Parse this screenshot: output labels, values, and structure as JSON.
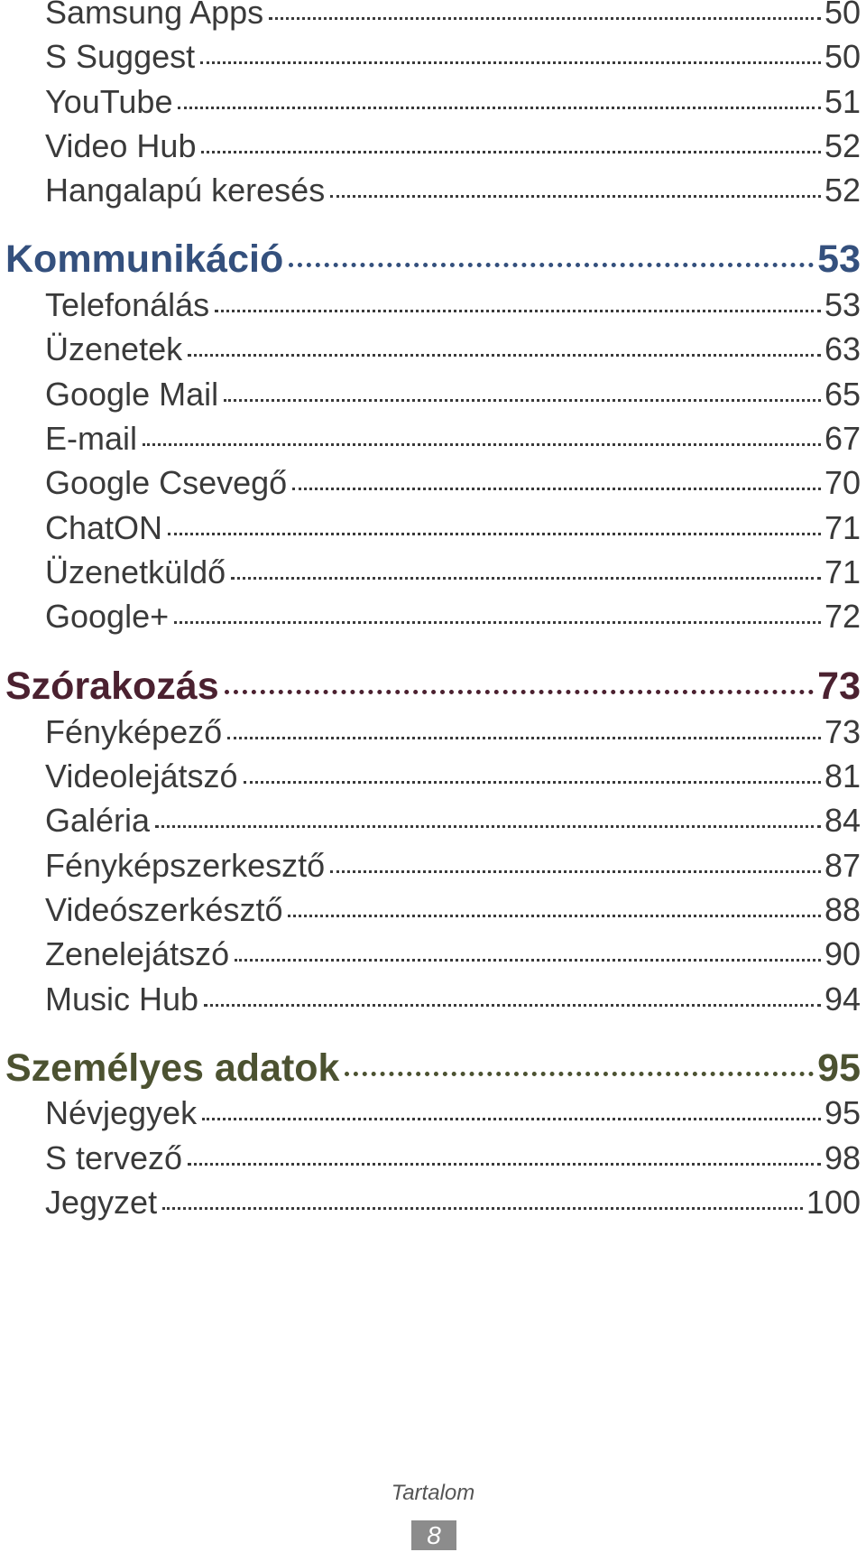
{
  "colors": {
    "item_text": "#3a3a3a",
    "section_communication": "#34507d",
    "section_entertainment": "#4b2130",
    "section_personal": "#4c5231",
    "page_box_bg": "#8c8c8c"
  },
  "toc": [
    {
      "kind": "item",
      "label": "Samsung Apps",
      "page": "50"
    },
    {
      "kind": "item",
      "label": "S Suggest",
      "page": "50"
    },
    {
      "kind": "item",
      "label": "YouTube",
      "page": "51"
    },
    {
      "kind": "item",
      "label": "Video Hub",
      "page": "52"
    },
    {
      "kind": "item",
      "label": "Hangalapú keresés",
      "page": "52"
    },
    {
      "kind": "section",
      "label": "Kommunikáció",
      "page": "53",
      "color": "#34507d"
    },
    {
      "kind": "item",
      "label": "Telefonálás",
      "page": "53"
    },
    {
      "kind": "item",
      "label": "Üzenetek",
      "page": "63"
    },
    {
      "kind": "item",
      "label": "Google Mail",
      "page": "65"
    },
    {
      "kind": "item",
      "label": "E-mail",
      "page": "67"
    },
    {
      "kind": "item",
      "label": "Google Csevegő",
      "page": "70"
    },
    {
      "kind": "item",
      "label": "ChatON",
      "page": "71"
    },
    {
      "kind": "item",
      "label": "Üzenetküldő",
      "page": "71"
    },
    {
      "kind": "item",
      "label": "Google+",
      "page": "72"
    },
    {
      "kind": "section",
      "label": "Szórakozás",
      "page": "73",
      "color": "#4b2130"
    },
    {
      "kind": "item",
      "label": "Fényképező",
      "page": "73"
    },
    {
      "kind": "item",
      "label": "Videolejátszó",
      "page": "81"
    },
    {
      "kind": "item",
      "label": "Galéria",
      "page": "84"
    },
    {
      "kind": "item",
      "label": "Fényképszerkesztő",
      "page": "87"
    },
    {
      "kind": "item",
      "label": "Videószerkésztő",
      "page": "88"
    },
    {
      "kind": "item",
      "label": "Zenelejátszó",
      "page": "90"
    },
    {
      "kind": "item",
      "label": "Music Hub",
      "page": "94"
    },
    {
      "kind": "section",
      "label": "Személyes adatok",
      "page": "95",
      "color": "#4c5231"
    },
    {
      "kind": "item",
      "label": "Névjegyek",
      "page": "95"
    },
    {
      "kind": "item",
      "label": "S tervező",
      "page": "98"
    },
    {
      "kind": "item",
      "label": "Jegyzet",
      "page": "100"
    }
  ],
  "footer": {
    "label": "Tartalom",
    "page_number": "8"
  }
}
